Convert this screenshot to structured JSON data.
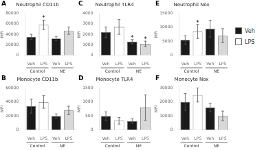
{
  "chart_data": [
    {
      "type": "bar",
      "panel_label": "A",
      "title": "Neutrophil CD11b",
      "ylabel": "MFI",
      "categories": [
        "Veh",
        "LPS",
        "Veh",
        "LPS"
      ],
      "groups": [
        "Control",
        "Control",
        "NE",
        "NE"
      ],
      "values": [
        35000,
        58000,
        32000,
        47000
      ],
      "errors": [
        5000,
        9000,
        4000,
        7000
      ],
      "colors": [
        "#1a1a1a",
        "#ffffff",
        "#1a1a1a",
        "#d8d8d8"
      ],
      "annotations": [
        null,
        "*",
        null,
        null
      ],
      "ylim": [
        0,
        80000
      ],
      "yticks": [
        0,
        20000,
        40000,
        60000,
        80000
      ],
      "grid": false
    },
    {
      "type": "bar",
      "panel_label": "C",
      "title": "Neutrophil TLR4",
      "ylabel": "MFI",
      "categories": [
        "Veh",
        "LPS",
        "Veh",
        "LPS"
      ],
      "groups": [
        "Control",
        "Control",
        "NE",
        "NE"
      ],
      "values": [
        2200,
        2700,
        1300,
        1100
      ],
      "errors": [
        500,
        700,
        200,
        250
      ],
      "colors": [
        "#1a1a1a",
        "#ffffff",
        "#1a1a1a",
        "#d8d8d8"
      ],
      "annotations": [
        null,
        null,
        "*",
        "*"
      ],
      "ylim": [
        0,
        4000
      ],
      "yticks": [
        0,
        1000,
        2000,
        3000,
        4000
      ],
      "grid": false
    },
    {
      "type": "bar",
      "panel_label": "E",
      "title": "Neutrophil Nox",
      "ylabel": "MFI",
      "categories": [
        "Veh",
        "LPS",
        "Veh",
        "LPS"
      ],
      "groups": [
        "Control",
        "Control",
        "NE",
        "NE"
      ],
      "values": [
        5500,
        8500,
        9500,
        7000
      ],
      "errors": [
        1500,
        2500,
        3000,
        2500
      ],
      "colors": [
        "#1a1a1a",
        "#ffffff",
        "#1a1a1a",
        "#d8d8d8"
      ],
      "annotations": [
        null,
        "*",
        null,
        null
      ],
      "ylim": [
        0,
        15000
      ],
      "yticks": [
        0,
        5000,
        10000,
        15000
      ],
      "grid": false
    },
    {
      "type": "bar",
      "panel_label": "B",
      "title": "Monocyte CD11b",
      "ylabel": "MFI",
      "categories": [
        "Veh",
        "LPS",
        "Veh",
        "LPS"
      ],
      "groups": [
        "Control",
        "Control",
        "NE",
        "NE"
      ],
      "values": [
        34000,
        40000,
        20000,
        28000
      ],
      "errors": [
        10000,
        9000,
        3000,
        6000
      ],
      "colors": [
        "#1a1a1a",
        "#ffffff",
        "#1a1a1a",
        "#d8d8d8"
      ],
      "annotations": [
        null,
        null,
        null,
        null
      ],
      "ylim": [
        0,
        60000
      ],
      "yticks": [
        0,
        20000,
        40000,
        60000
      ],
      "grid": false
    },
    {
      "type": "bar",
      "panel_label": "D",
      "title": "Monocyte TLR4",
      "ylabel": "MFI",
      "categories": [
        "Veh",
        "LPS",
        "Veh",
        "LPS"
      ],
      "groups": [
        "Control",
        "Control",
        "NE",
        "NE"
      ],
      "values": [
        500,
        330,
        320,
        800
      ],
      "errors": [
        150,
        120,
        80,
        450
      ],
      "colors": [
        "#1a1a1a",
        "#ffffff",
        "#1a1a1a",
        "#d8d8d8"
      ],
      "annotations": [
        null,
        null,
        null,
        null
      ],
      "ylim": [
        0,
        1500
      ],
      "yticks": [
        0,
        500,
        1000,
        1500
      ],
      "grid": false
    },
    {
      "type": "bar",
      "panel_label": "F",
      "title": "Monocyte Nox",
      "ylabel": "MFI",
      "categories": [
        "Veh",
        "LPS",
        "Veh",
        "LPS"
      ],
      "groups": [
        "Control",
        "Control",
        "NE",
        "NE"
      ],
      "values": [
        20000,
        25000,
        16000,
        10000
      ],
      "errors": [
        6000,
        5000,
        3000,
        3500
      ],
      "colors": [
        "#1a1a1a",
        "#ffffff",
        "#1a1a1a",
        "#d8d8d8"
      ],
      "annotations": [
        null,
        null,
        null,
        null
      ],
      "ylim": [
        0,
        30000
      ],
      "yticks": [
        0,
        10000,
        20000,
        30000
      ],
      "grid": false
    }
  ],
  "legend": "right",
  "legend_entries": [
    {
      "name": "Veh",
      "color": "#1a1a1a"
    },
    {
      "name": "LPS",
      "color": "#ffffff"
    }
  ]
}
